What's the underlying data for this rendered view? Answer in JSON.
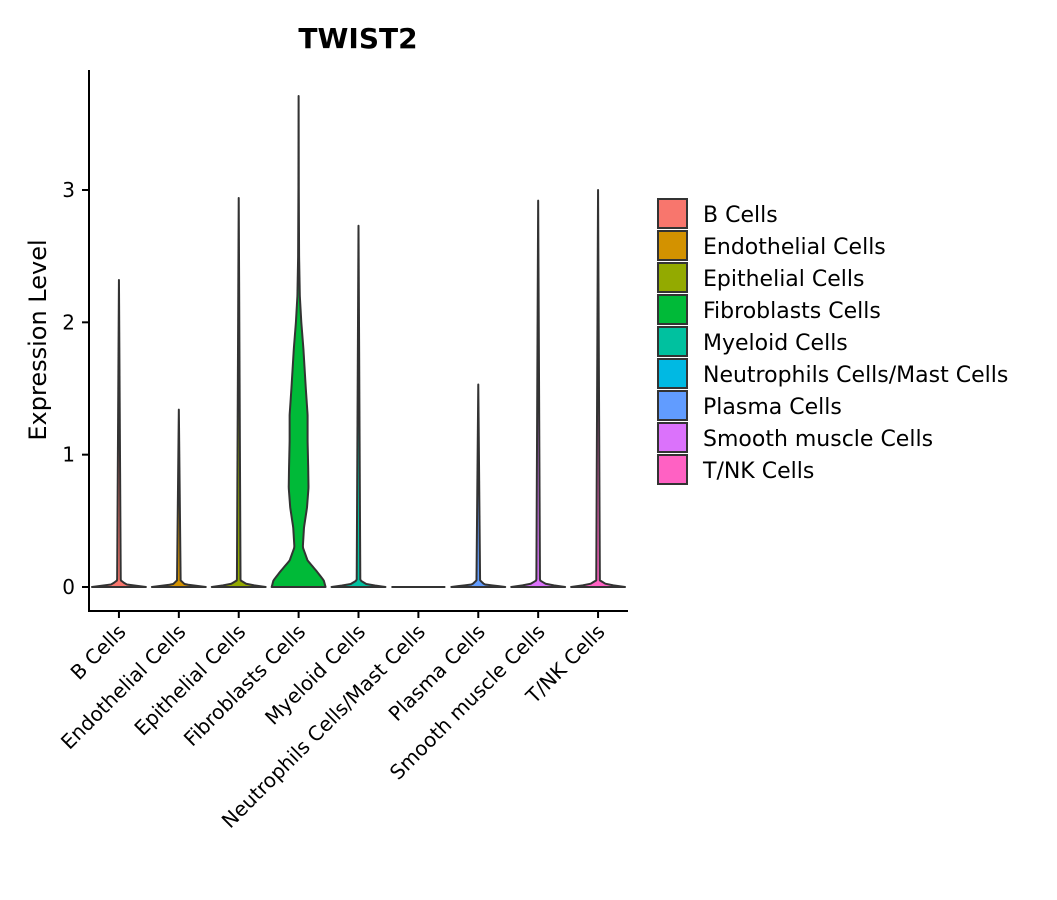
{
  "chart_data": {
    "type": "violin",
    "title": "TWIST2",
    "xlabel": "",
    "ylabel": "Expression Level",
    "ylim": [
      -0.18,
      3.9
    ],
    "yticks": [
      0,
      1,
      2,
      3
    ],
    "grid": false,
    "legend_position": "right",
    "categories": [
      "B Cells",
      "Endothelial Cells",
      "Epithelial Cells",
      "Fibroblasts Cells",
      "Myeloid Cells",
      "Neutrophils Cells/Mast Cells",
      "Plasma Cells",
      "Smooth muscle Cells",
      "T/NK Cells"
    ],
    "colors": [
      "#F8766D",
      "#D39200",
      "#93AA00",
      "#00BA38",
      "#00C19F",
      "#00B9E3",
      "#619CFF",
      "#DB72FB",
      "#FF61C3"
    ],
    "series": [
      {
        "name": "B Cells",
        "max": 2.32,
        "profile": [
          [
            0,
            0.45
          ],
          [
            0.02,
            0.12
          ],
          [
            0.05,
            0.03
          ],
          [
            2.32,
            0.0
          ]
        ]
      },
      {
        "name": "Endothelial Cells",
        "max": 1.34,
        "profile": [
          [
            0,
            0.45
          ],
          [
            0.02,
            0.1
          ],
          [
            0.05,
            0.03
          ],
          [
            1.34,
            0.0
          ]
        ]
      },
      {
        "name": "Epithelial Cells",
        "max": 2.94,
        "profile": [
          [
            0,
            0.45
          ],
          [
            0.02,
            0.14
          ],
          [
            0.05,
            0.03
          ],
          [
            2.94,
            0.0
          ]
        ]
      },
      {
        "name": "Fibroblasts Cells",
        "max": 3.71,
        "profile": [
          [
            0,
            0.45
          ],
          [
            0.05,
            0.42
          ],
          [
            0.12,
            0.3
          ],
          [
            0.2,
            0.15
          ],
          [
            0.3,
            0.07
          ],
          [
            0.45,
            0.09
          ],
          [
            0.6,
            0.14
          ],
          [
            0.75,
            0.165
          ],
          [
            0.9,
            0.16
          ],
          [
            1.1,
            0.15
          ],
          [
            1.3,
            0.15
          ],
          [
            1.5,
            0.12
          ],
          [
            1.8,
            0.08
          ],
          [
            2.0,
            0.045
          ],
          [
            2.2,
            0.02
          ],
          [
            2.5,
            0.008
          ],
          [
            3.0,
            0.003
          ],
          [
            3.71,
            0.0
          ]
        ]
      },
      {
        "name": "Myeloid Cells",
        "max": 2.73,
        "profile": [
          [
            0,
            0.45
          ],
          [
            0.02,
            0.14
          ],
          [
            0.05,
            0.03
          ],
          [
            2.73,
            0.0
          ]
        ]
      },
      {
        "name": "Neutrophils Cells/Mast Cells",
        "max": 0.0,
        "profile": [
          [
            0,
            0.45
          ]
        ]
      },
      {
        "name": "Plasma Cells",
        "max": 1.53,
        "profile": [
          [
            0,
            0.45
          ],
          [
            0.02,
            0.1
          ],
          [
            0.05,
            0.03
          ],
          [
            1.53,
            0.0
          ]
        ]
      },
      {
        "name": "Smooth muscle Cells",
        "max": 2.92,
        "profile": [
          [
            0,
            0.45
          ],
          [
            0.02,
            0.14
          ],
          [
            0.05,
            0.03
          ],
          [
            2.92,
            0.0
          ]
        ]
      },
      {
        "name": "T/NK Cells",
        "max": 3.0,
        "profile": [
          [
            0,
            0.45
          ],
          [
            0.02,
            0.14
          ],
          [
            0.05,
            0.03
          ],
          [
            3.0,
            0.0
          ]
        ]
      }
    ]
  }
}
